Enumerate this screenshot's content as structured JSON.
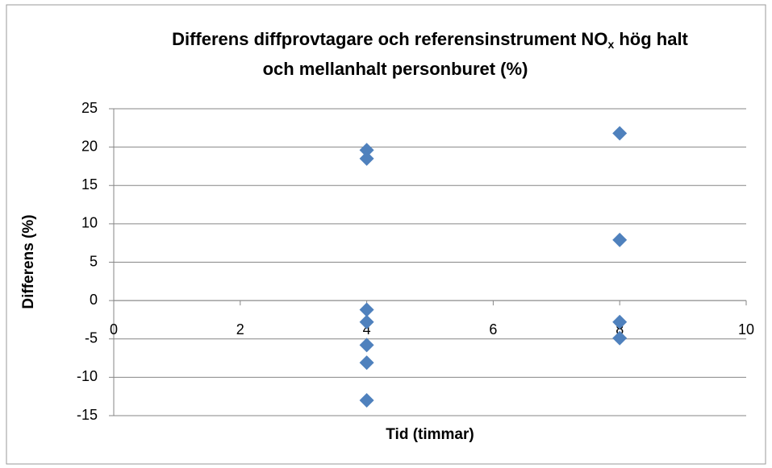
{
  "chart_data": {
    "type": "scatter",
    "title": [
      "Differens diffprovtagare och referensinstrument NO",
      "x",
      " hög halt",
      "och mellanhalt personburet (%)"
    ],
    "x_label": "Tid (timmar)",
    "y_label": "Differens (%)",
    "x": [
      4,
      4,
      4,
      4,
      4,
      4,
      4,
      8,
      8,
      8,
      8
    ],
    "values": [
      19.6,
      18.5,
      -1.2,
      -2.8,
      -5.8,
      -8.1,
      -13,
      21.8,
      7.9,
      -2.8,
      -4.9
    ],
    "color": "#4f81bd",
    "xlim": [
      0,
      10
    ],
    "xticks": [
      0,
      2,
      4,
      6,
      8,
      10
    ],
    "ylim": [
      -15,
      25
    ],
    "yticks": [
      -15,
      -10,
      -5,
      0,
      5,
      10,
      15,
      20,
      25
    ],
    "grid": true
  }
}
